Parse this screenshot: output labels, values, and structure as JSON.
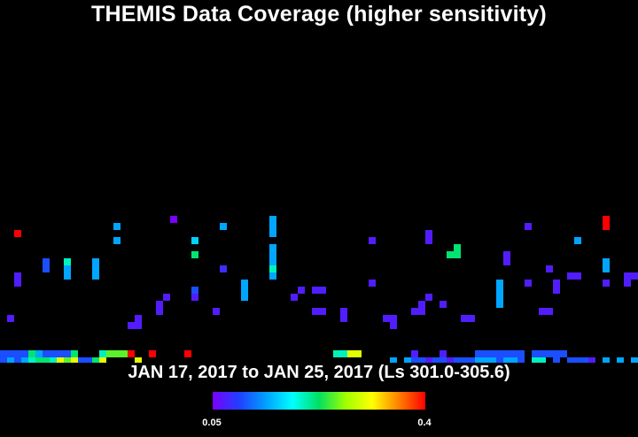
{
  "title": "THEMIS Data Coverage (higher sensitivity)",
  "date_range": "JAN 17, 2017 to JAN 25, 2017 (Ls 301.0-305.6)",
  "colorbar": {
    "min_label": "0.05",
    "max_label": "0.4",
    "min": 0.05,
    "max": 0.4,
    "colors": [
      "#7a00ff",
      "#2040ff",
      "#00a0ff",
      "#00ffff",
      "#00e060",
      "#a0ff00",
      "#ffff00",
      "#ff8000",
      "#ff0000"
    ]
  },
  "chart_data": {
    "type": "heatmap",
    "title": "THEMIS Data Coverage (higher sensitivity)",
    "subtitle": "JAN 17, 2017 to JAN 25, 2017 (Ls 301.0-305.6)",
    "grid_columns": 90,
    "grid_rows": 50,
    "value_range": [
      0.05,
      0.4
    ],
    "cells": [
      [
        2,
        32,
        0.4
      ],
      [
        24,
        30,
        0.05
      ],
      [
        27,
        33,
        0.16
      ],
      [
        27,
        35,
        0.22
      ],
      [
        27,
        40,
        0.1
      ],
      [
        27,
        41,
        0.07
      ],
      [
        38,
        30,
        0.14
      ],
      [
        38,
        31,
        0.14
      ],
      [
        38,
        32,
        0.14
      ],
      [
        38,
        34,
        0.14
      ],
      [
        38,
        35,
        0.14
      ],
      [
        38,
        36,
        0.14
      ],
      [
        38,
        37,
        0.2
      ],
      [
        38,
        38,
        0.14
      ],
      [
        16,
        31,
        0.14
      ],
      [
        16,
        33,
        0.14
      ],
      [
        31,
        31,
        0.14
      ],
      [
        31,
        37,
        0.08
      ],
      [
        6,
        36,
        0.1
      ],
      [
        6,
        37,
        0.1
      ],
      [
        9,
        36,
        0.2
      ],
      [
        9,
        37,
        0.14
      ],
      [
        9,
        38,
        0.14
      ],
      [
        13,
        36,
        0.14
      ],
      [
        13,
        37,
        0.14
      ],
      [
        13,
        38,
        0.14
      ],
      [
        2,
        38,
        0.07
      ],
      [
        2,
        39,
        0.07
      ],
      [
        1,
        44,
        0.07
      ],
      [
        18,
        52,
        0.07
      ],
      [
        19,
        44,
        0.07
      ],
      [
        18,
        45,
        0.07
      ],
      [
        19,
        45,
        0.07
      ],
      [
        22,
        43,
        0.07
      ],
      [
        23,
        41,
        0.07
      ],
      [
        22,
        42,
        0.07
      ],
      [
        34,
        39,
        0.14
      ],
      [
        34,
        40,
        0.14
      ],
      [
        34,
        41,
        0.14
      ],
      [
        30,
        43,
        0.07
      ],
      [
        52,
        33,
        0.07
      ],
      [
        60,
        32,
        0.07
      ],
      [
        60,
        33,
        0.07
      ],
      [
        64,
        34,
        0.22
      ],
      [
        63,
        35,
        0.22
      ],
      [
        64,
        35,
        0.22
      ],
      [
        71,
        35,
        0.07
      ],
      [
        71,
        36,
        0.07
      ],
      [
        74,
        31,
        0.07
      ],
      [
        81,
        33,
        0.14
      ],
      [
        85,
        30,
        0.4
      ],
      [
        85,
        31,
        0.4
      ],
      [
        85,
        36,
        0.14
      ],
      [
        85,
        37,
        0.14
      ],
      [
        42,
        40,
        0.07
      ],
      [
        41,
        41,
        0.07
      ],
      [
        44,
        40,
        0.07
      ],
      [
        45,
        40,
        0.07
      ],
      [
        44,
        43,
        0.07
      ],
      [
        45,
        43,
        0.07
      ],
      [
        52,
        39,
        0.07
      ],
      [
        60,
        41,
        0.07
      ],
      [
        59,
        42,
        0.07
      ],
      [
        59,
        43,
        0.07
      ],
      [
        58,
        43,
        0.07
      ],
      [
        54,
        44,
        0.07
      ],
      [
        55,
        44,
        0.07
      ],
      [
        55,
        45,
        0.07
      ],
      [
        70,
        39,
        0.14
      ],
      [
        70,
        40,
        0.14
      ],
      [
        70,
        41,
        0.14
      ],
      [
        70,
        42,
        0.14
      ],
      [
        74,
        39,
        0.07
      ],
      [
        77,
        37,
        0.07
      ],
      [
        78,
        39,
        0.07
      ],
      [
        78,
        40,
        0.07
      ],
      [
        80,
        38,
        0.07
      ],
      [
        81,
        38,
        0.07
      ],
      [
        85,
        39,
        0.07
      ],
      [
        88,
        38,
        0.07
      ],
      [
        89,
        38,
        0.07
      ],
      [
        88,
        39,
        0.07
      ],
      [
        76,
        43,
        0.07
      ],
      [
        77,
        43,
        0.07
      ],
      [
        62,
        42,
        0.07
      ],
      [
        65,
        44,
        0.07
      ],
      [
        66,
        44,
        0.07
      ],
      [
        48,
        43,
        0.07
      ],
      [
        48,
        44,
        0.07
      ],
      [
        0,
        49,
        0.1
      ],
      [
        1,
        49,
        0.1
      ],
      [
        2,
        49,
        0.1
      ],
      [
        3,
        49,
        0.1
      ],
      [
        4,
        49,
        0.22
      ],
      [
        5,
        49,
        0.14
      ],
      [
        6,
        49,
        0.1
      ],
      [
        7,
        49,
        0.1
      ],
      [
        8,
        49,
        0.1
      ],
      [
        9,
        49,
        0.1
      ],
      [
        10,
        49,
        0.22
      ],
      [
        14,
        49,
        0.2
      ],
      [
        15,
        49,
        0.25
      ],
      [
        16,
        49,
        0.25
      ],
      [
        17,
        49,
        0.25
      ],
      [
        18,
        49,
        0.4
      ],
      [
        21,
        49,
        0.4
      ],
      [
        26,
        49,
        0.4
      ],
      [
        47,
        49,
        0.2
      ],
      [
        48,
        49,
        0.2
      ],
      [
        49,
        49,
        0.3
      ],
      [
        50,
        49,
        0.3
      ],
      [
        58,
        49,
        0.07
      ],
      [
        62,
        49,
        0.07
      ],
      [
        67,
        49,
        0.1
      ],
      [
        68,
        49,
        0.1
      ],
      [
        69,
        49,
        0.1
      ],
      [
        70,
        49,
        0.1
      ],
      [
        71,
        49,
        0.1
      ],
      [
        72,
        49,
        0.1
      ],
      [
        73,
        49,
        0.1
      ],
      [
        75,
        49,
        0.1
      ],
      [
        76,
        49,
        0.1
      ],
      [
        77,
        49,
        0.1
      ],
      [
        78,
        49,
        0.1
      ],
      [
        79,
        49,
        0.1
      ],
      [
        0,
        50,
        0.1
      ],
      [
        1,
        50,
        0.14
      ],
      [
        2,
        50,
        0.1
      ],
      [
        3,
        50,
        0.14
      ],
      [
        4,
        50,
        0.2
      ],
      [
        5,
        50,
        0.22
      ],
      [
        6,
        50,
        0.22
      ],
      [
        7,
        50,
        0.2
      ],
      [
        8,
        50,
        0.3
      ],
      [
        9,
        50,
        0.25
      ],
      [
        10,
        50,
        0.3
      ],
      [
        11,
        50,
        0.1
      ],
      [
        12,
        50,
        0.1
      ],
      [
        13,
        50,
        0.22
      ],
      [
        14,
        50,
        0.3
      ],
      [
        19,
        50,
        0.3
      ],
      [
        55,
        50,
        0.14
      ],
      [
        57,
        50,
        0.14
      ],
      [
        58,
        50,
        0.1
      ],
      [
        59,
        50,
        0.1
      ],
      [
        60,
        50,
        0.07
      ],
      [
        61,
        50,
        0.1
      ],
      [
        62,
        50,
        0.1
      ],
      [
        63,
        50,
        0.07
      ],
      [
        64,
        50,
        0.1
      ],
      [
        65,
        50,
        0.1
      ],
      [
        66,
        50,
        0.1
      ],
      [
        67,
        50,
        0.14
      ],
      [
        68,
        50,
        0.14
      ],
      [
        69,
        50,
        0.14
      ],
      [
        70,
        50,
        0.1
      ],
      [
        71,
        50,
        0.14
      ],
      [
        72,
        50,
        0.14
      ],
      [
        73,
        50,
        0.1
      ],
      [
        75,
        50,
        0.2
      ],
      [
        76,
        50,
        0.2
      ],
      [
        78,
        50,
        0.1
      ],
      [
        80,
        50,
        0.1
      ],
      [
        81,
        50,
        0.1
      ],
      [
        82,
        50,
        0.1
      ],
      [
        83,
        50,
        0.07
      ],
      [
        85,
        50,
        0.14
      ],
      [
        87,
        50,
        0.14
      ],
      [
        89,
        50,
        0.14
      ]
    ]
  }
}
